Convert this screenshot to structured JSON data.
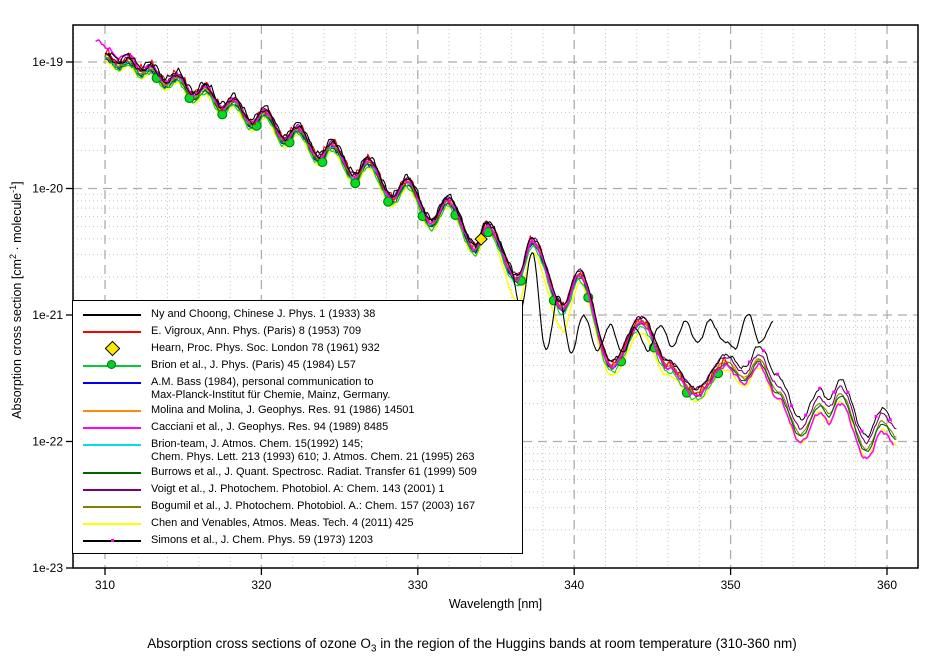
{
  "caption": {
    "pre": "Absorption cross sections of ozone O",
    "sub": "3",
    "post": " in the region of the Huggins bands at room temperature (310-360 nm)"
  },
  "axes": {
    "xlabel": "Wavelength [nm]",
    "ylabel_parts": {
      "pre": "Absorption cross section [cm",
      "sup1": "2",
      "mid": " · molecule",
      "sup2": "-1",
      "post": "]"
    },
    "x_ticks": [
      310,
      320,
      330,
      340,
      350,
      360
    ],
    "y_ticks": [
      {
        "label": "1e-19",
        "log": -19
      },
      {
        "label": "1e-20",
        "log": -20
      },
      {
        "label": "1e-21",
        "log": -21
      },
      {
        "label": "1e-22",
        "log": -22
      },
      {
        "label": "1e-23",
        "log": -23
      }
    ]
  },
  "legend": {
    "items": [
      {
        "id": "ny",
        "marker": "line",
        "color": "#000000",
        "label_lines": [
          "Ny and Choong, Chinese J. Phys. 1 (1933) 38"
        ]
      },
      {
        "id": "vigroux",
        "marker": "line",
        "color": "#FF0000",
        "label_lines": [
          "E. Vigroux, Ann. Phys. (Paris) 8 (1953) 709"
        ]
      },
      {
        "id": "hearn",
        "marker": "diamond",
        "color": "#FFE800",
        "label_lines": [
          "Hearn, Proc. Phys. Soc. London 78 (1961) 932"
        ]
      },
      {
        "id": "brion84",
        "marker": "line-circle",
        "color": "#00CC33",
        "label_lines": [
          "Brion et al., J. Phys. (Paris) 45 (1984) L57"
        ]
      },
      {
        "id": "bass",
        "marker": "line",
        "color": "#0000EE",
        "label_lines": [
          "A.M. Bass (1984), personal communication to",
          "Max-Planck-Institut für Chemie, Mainz, Germany."
        ]
      },
      {
        "id": "molina",
        "marker": "line",
        "color": "#FF8C00",
        "label_lines": [
          "Molina and Molina, J. Geophys. Res. 91 (1986) 14501"
        ]
      },
      {
        "id": "cacciani",
        "marker": "line",
        "color": "#FF00FF",
        "label_lines": [
          "Cacciani et al., J. Geophys. Res. 94 (1989) 8485"
        ]
      },
      {
        "id": "brionteam",
        "marker": "line",
        "color": "#00E0E0",
        "label_lines": [
          "Brion-team, J. Atmos. Chem. 15(1992) 145;",
          "Chem. Phys. Lett. 213 (1993) 610; J. Atmos. Chem. 21 (1995) 263"
        ]
      },
      {
        "id": "burrows",
        "marker": "line",
        "color": "#006400",
        "label_lines": [
          "Burrows et al., J. Quant. Spectrosc. Radiat. Transfer 61 (1999) 509"
        ]
      },
      {
        "id": "voigt",
        "marker": "line",
        "color": "#7A007A",
        "label_lines": [
          "Voigt et al., J. Photochem. Photobiol. A: Chem. 143 (2001) 1"
        ]
      },
      {
        "id": "bogumil",
        "marker": "line",
        "color": "#7F7F00",
        "label_lines": [
          "Bogumil et al., J. Photochem. Photobiol. A.: Chem. 157 (2003) 167"
        ]
      },
      {
        "id": "chen",
        "marker": "line",
        "color": "#FFFF00",
        "label_lines": [
          "Chen and Venables, Atmos. Meas. Tech. 4 (2011) 425"
        ]
      },
      {
        "id": "simons",
        "marker": "line-dot",
        "color": "#000000",
        "label_lines": [
          "Simons et al., J. Chem. Phys. 59 (1973) 1203"
        ]
      }
    ]
  },
  "chart_data": {
    "type": "line",
    "title": "Absorption cross sections of ozone O3 in the region of the Huggins bands at room temperature (310-360 nm)",
    "xlabel": "Wavelength [nm]",
    "ylabel": "Absorption cross section [cm2 molecule-1]",
    "x_range": [
      308,
      362
    ],
    "y_scale": "log10",
    "y_range": [
      1e-23,
      2e-19
    ],
    "x_major_step": 10,
    "x_minor_step": 2,
    "grid": true,
    "legend_position": "inside lower-left",
    "bundle_log10_anchors": [
      [
        309.4,
        -18.91
      ],
      [
        310.0,
        -18.955
      ],
      [
        310.9,
        -19.03
      ],
      [
        311.5,
        -18.99
      ],
      [
        312.3,
        -19.09
      ],
      [
        312.9,
        -19.05
      ],
      [
        313.9,
        -19.18
      ],
      [
        314.6,
        -19.12
      ],
      [
        315.7,
        -19.28
      ],
      [
        316.4,
        -19.21
      ],
      [
        317.5,
        -19.38
      ],
      [
        318.2,
        -19.31
      ],
      [
        319.4,
        -19.5
      ],
      [
        320.2,
        -19.4
      ],
      [
        321.5,
        -19.63
      ],
      [
        322.3,
        -19.53
      ],
      [
        323.7,
        -19.77
      ],
      [
        324.5,
        -19.66
      ],
      [
        326.0,
        -19.92
      ],
      [
        326.8,
        -19.79
      ],
      [
        328.4,
        -20.09
      ],
      [
        329.3,
        -19.95
      ],
      [
        330.9,
        -20.28
      ],
      [
        331.9,
        -20.1
      ],
      [
        333.7,
        -20.48
      ],
      [
        334.4,
        -20.3
      ],
      [
        336.4,
        -20.72
      ],
      [
        337.3,
        -20.42
      ],
      [
        339.3,
        -20.95
      ],
      [
        340.3,
        -20.68
      ],
      [
        342.4,
        -21.4
      ],
      [
        344.3,
        -21.05
      ],
      [
        346.0,
        -21.4
      ],
      [
        347.8,
        -21.62
      ],
      [
        349.7,
        -21.37
      ],
      [
        350.9,
        -21.5
      ],
      [
        351.8,
        -21.35
      ],
      [
        353.0,
        -21.6
      ],
      [
        354.5,
        -21.94
      ],
      [
        355.7,
        -21.7
      ],
      [
        356.3,
        -21.78
      ],
      [
        357.0,
        -21.62
      ],
      [
        358.7,
        -22.06
      ],
      [
        359.7,
        -21.84
      ],
      [
        360.6,
        -21.96
      ]
    ],
    "ny_tail_anchors": [
      [
        335.8,
        -20.57
      ],
      [
        336.6,
        -20.95
      ],
      [
        337.3,
        -20.5
      ],
      [
        338.2,
        -21.28
      ],
      [
        339.0,
        -20.85
      ],
      [
        339.8,
        -21.3
      ],
      [
        340.6,
        -21.0
      ],
      [
        341.5,
        -21.28
      ],
      [
        342.3,
        -21.08
      ],
      [
        343.1,
        -21.3
      ],
      [
        343.9,
        -21.1
      ],
      [
        344.7,
        -21.28
      ],
      [
        345.5,
        -21.08
      ],
      [
        346.3,
        -21.25
      ],
      [
        347.1,
        -21.05
      ],
      [
        347.9,
        -21.22
      ],
      [
        348.7,
        -21.04
      ],
      [
        349.5,
        -21.2
      ],
      [
        350.3,
        -21.26
      ],
      [
        351.1,
        -20.99
      ],
      [
        351.9,
        -21.22
      ],
      [
        352.7,
        -21.06
      ]
    ],
    "hearn_points": [
      [
        334.05,
        -20.4
      ]
    ],
    "brion_circle_lambdas": [
      313.3,
      315.4,
      317.5,
      319.7,
      321.8,
      323.9,
      326.0,
      328.1,
      330.3,
      332.4,
      334.5,
      336.6,
      338.7,
      340.9,
      343.0,
      345.1,
      347.2,
      349.2
    ],
    "simons_dots": {
      "start": 351.2,
      "end": 360.2,
      "step": 0.9
    },
    "series": [
      {
        "id": "bass",
        "color": "#0000EE",
        "x1": 310.0,
        "x2": 344.5,
        "w": 1.1,
        "jit": 0.02,
        "seed": 1,
        "off": [
          [
            310,
            -0.015
          ]
        ]
      },
      {
        "id": "brionteam",
        "color": "#00E0E0",
        "x1": 310.0,
        "x2": 343.5,
        "w": 1.1,
        "jit": 0.015,
        "seed": 2,
        "off": [
          [
            310,
            -0.005
          ]
        ]
      },
      {
        "id": "molina",
        "color": "#FF8C00",
        "x1": 310.0,
        "x2": 352.3,
        "w": 1.1,
        "jit": 0.015,
        "seed": 3,
        "off": [
          [
            310,
            0.005
          ]
        ]
      },
      {
        "id": "bogumil",
        "color": "#7F7F00",
        "x1": 310.0,
        "x2": 360.6,
        "w": 1.1,
        "jit": 0.012,
        "seed": 4,
        "off": [
          [
            310,
            0.0
          ]
        ]
      },
      {
        "id": "burrows",
        "color": "#006400",
        "x1": 310.0,
        "x2": 360.6,
        "w": 1.1,
        "jit": 0.012,
        "seed": 5,
        "off": [
          [
            310,
            -0.02
          ]
        ]
      },
      {
        "id": "chen",
        "color": "#FFFF00",
        "x1": 310.0,
        "x2": 360.6,
        "w": 1.5,
        "jit": 0.012,
        "seed": 6,
        "off": [
          [
            310,
            -0.04
          ],
          [
            335,
            -0.05
          ],
          [
            336.5,
            -0.2
          ],
          [
            337.4,
            -0.08
          ],
          [
            339.3,
            -0.18
          ],
          [
            340.4,
            -0.06
          ],
          [
            345,
            -0.1
          ],
          [
            347,
            -0.06
          ],
          [
            360,
            -0.07
          ]
        ]
      },
      {
        "id": "brion84",
        "color": "#00CC33",
        "x1": 310.3,
        "x2": 349.4,
        "w": 1.1,
        "jit": 0.02,
        "seed": 7,
        "off": [
          [
            310,
            -0.03
          ],
          [
            349,
            -0.05
          ]
        ],
        "circles": true
      },
      {
        "id": "vigroux",
        "color": "#FF0000",
        "x1": 310.0,
        "x2": 349.8,
        "w": 1.1,
        "jit": 0.045,
        "seed": 8,
        "off": [
          [
            310,
            0.03
          ],
          [
            336,
            0.02
          ],
          [
            349,
            0.0
          ]
        ]
      },
      {
        "id": "voigt",
        "color": "#7A007A",
        "x1": 310.0,
        "x2": 360.6,
        "w": 1.1,
        "jit": 0.018,
        "seed": 9,
        "off": [
          [
            310,
            0.02
          ],
          [
            352,
            0.04
          ],
          [
            360,
            0.06
          ]
        ]
      },
      {
        "id": "cacciani",
        "color": "#FF00FF",
        "x1": 309.4,
        "x2": 360.4,
        "w": 1.5,
        "jit": 0.02,
        "seed": 10,
        "off": [
          [
            309.4,
            0.09
          ],
          [
            313,
            0.02
          ],
          [
            330,
            0.01
          ],
          [
            348,
            -0.02
          ],
          [
            355,
            -0.07
          ],
          [
            360,
            -0.08
          ]
        ]
      },
      {
        "id": "simons",
        "color": "#000000",
        "x1": 310.0,
        "x2": 360.3,
        "w": 1.0,
        "jit": 0.02,
        "seed": 11,
        "off": [
          [
            310,
            0.015
          ],
          [
            349,
            0.04
          ],
          [
            352.5,
            0.12
          ],
          [
            360,
            0.1
          ]
        ],
        "squares": true
      },
      {
        "id": "ny",
        "color": "#000000",
        "x1": 310.2,
        "x2": 352.7,
        "w": 1.1,
        "jit": 0.03,
        "seed": 12,
        "off": [
          [
            310,
            0.05
          ],
          [
            336,
            0.04
          ]
        ],
        "tail": true
      }
    ]
  }
}
